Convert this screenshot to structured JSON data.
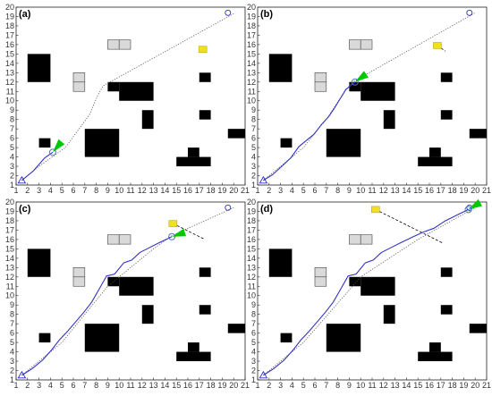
{
  "chart_data": [
    {
      "type": "scatter",
      "panel_label": "(a)",
      "xlim": [
        1,
        21
      ],
      "ylim": [
        1,
        20
      ],
      "x_ticks": [
        1,
        2,
        3,
        4,
        5,
        6,
        7,
        8,
        9,
        10,
        11,
        12,
        13,
        14,
        15,
        16,
        17,
        18,
        19,
        20,
        21
      ],
      "y_ticks": [
        1,
        2,
        3,
        4,
        5,
        6,
        7,
        8,
        9,
        10,
        11,
        12,
        13,
        14,
        15,
        16,
        17,
        18,
        19,
        20
      ],
      "reference_path": [
        [
          1.5,
          1.5
        ],
        [
          3,
          3
        ],
        [
          5.3,
          5
        ],
        [
          7.4,
          8.5
        ],
        [
          8.1,
          10.5
        ],
        [
          8.6,
          11.6
        ],
        [
          20,
          19.3
        ]
      ],
      "executed_path": [
        [
          1.5,
          1.5
        ],
        [
          2.5,
          2.5
        ],
        [
          3.5,
          3.9
        ],
        [
          4.2,
          4.5
        ]
      ],
      "robot": [
        4.2,
        4.5
      ],
      "goal": [
        19.5,
        19.4
      ],
      "dynamic_obstacle": [
        17.3,
        15.5
      ],
      "green_heading_deg": 50
    },
    {
      "type": "scatter",
      "panel_label": "(b)",
      "xlim": [
        1,
        21
      ],
      "ylim": [
        1,
        20
      ],
      "x_ticks": [
        1,
        2,
        3,
        4,
        5,
        6,
        7,
        8,
        9,
        10,
        11,
        12,
        13,
        14,
        15,
        16,
        17,
        18,
        19,
        20,
        21
      ],
      "y_ticks": [
        1,
        2,
        3,
        4,
        5,
        6,
        7,
        8,
        9,
        10,
        11,
        12,
        13,
        14,
        15,
        16,
        17,
        18,
        19,
        20
      ],
      "reference_path": [
        [
          1.5,
          1.5
        ],
        [
          3,
          3
        ],
        [
          5,
          5
        ],
        [
          6.3,
          7
        ],
        [
          7,
          8
        ],
        [
          7.8,
          9.5
        ],
        [
          8.6,
          11
        ],
        [
          9.3,
          12
        ],
        [
          20,
          19.4
        ]
      ],
      "executed_path": [
        [
          1.5,
          1.5
        ],
        [
          2.3,
          2.1
        ],
        [
          3.2,
          3.1
        ],
        [
          3.9,
          3.9
        ],
        [
          4.6,
          5.1
        ],
        [
          5.3,
          5.8
        ],
        [
          5.9,
          6.4
        ],
        [
          6.6,
          7.5
        ],
        [
          7.2,
          8.3
        ],
        [
          7.7,
          9.2
        ],
        [
          8.2,
          10.2
        ],
        [
          8.7,
          11.2
        ],
        [
          9.5,
          12
        ]
      ],
      "robot": [
        9.5,
        12
      ],
      "goal": [
        19.5,
        19.4
      ],
      "dynamic_obstacle": [
        16.7,
        15.9
      ],
      "dynamic_obstacle_track": [
        [
          16.7,
          15.9
        ],
        [
          17.4,
          15.3
        ]
      ],
      "green_heading_deg": 35
    },
    {
      "type": "scatter",
      "panel_label": "(c)",
      "xlim": [
        1,
        21
      ],
      "ylim": [
        1,
        20
      ],
      "x_ticks": [
        1,
        2,
        3,
        4,
        5,
        6,
        7,
        8,
        9,
        10,
        11,
        12,
        13,
        14,
        15,
        16,
        17,
        18,
        19,
        20,
        21
      ],
      "y_ticks": [
        1,
        2,
        3,
        4,
        5,
        6,
        7,
        8,
        9,
        10,
        11,
        12,
        13,
        14,
        15,
        16,
        17,
        18,
        19,
        20
      ],
      "reference_path": [
        [
          1.5,
          1.5
        ],
        [
          5,
          5
        ],
        [
          9,
          11
        ],
        [
          13,
          15
        ],
        [
          14.6,
          16.4
        ],
        [
          20,
          19.4
        ]
      ],
      "executed_path": [
        [
          1.5,
          1.5
        ],
        [
          2.4,
          2.2
        ],
        [
          3.3,
          3.1
        ],
        [
          4.1,
          4.2
        ],
        [
          4.8,
          5.3
        ],
        [
          5.5,
          6.2
        ],
        [
          6.2,
          7.2
        ],
        [
          6.9,
          8.2
        ],
        [
          7.6,
          9.3
        ],
        [
          8.3,
          10.8
        ],
        [
          8.9,
          12.1
        ],
        [
          9.6,
          12.3
        ],
        [
          10.4,
          13.5
        ],
        [
          11.1,
          13.8
        ],
        [
          11.8,
          14.6
        ],
        [
          12.6,
          15.1
        ],
        [
          13.4,
          15.6
        ],
        [
          14.6,
          16.3
        ]
      ],
      "robot": [
        14.6,
        16.3
      ],
      "goal": [
        19.5,
        19.4
      ],
      "dynamic_obstacle": [
        14.7,
        17.7
      ],
      "dynamic_obstacle_track": [
        [
          14.7,
          17.7
        ],
        [
          17.5,
          16
        ]
      ],
      "green_heading_deg": 18
    },
    {
      "type": "scatter",
      "panel_label": "(d)",
      "xlim": [
        1,
        21
      ],
      "ylim": [
        1,
        20
      ],
      "x_ticks": [
        1,
        2,
        3,
        4,
        5,
        6,
        7,
        8,
        9,
        10,
        11,
        12,
        13,
        14,
        15,
        16,
        17,
        18,
        19,
        20,
        21
      ],
      "y_ticks": [
        1,
        2,
        3,
        4,
        5,
        6,
        7,
        8,
        9,
        10,
        11,
        12,
        13,
        14,
        15,
        16,
        17,
        18,
        19,
        20
      ],
      "reference_path": [
        [
          1.5,
          1.5
        ],
        [
          5,
          5
        ],
        [
          10,
          12
        ],
        [
          15,
          16
        ],
        [
          20,
          19.4
        ]
      ],
      "executed_path": [
        [
          1.5,
          1.5
        ],
        [
          2.4,
          2.2
        ],
        [
          3.3,
          3.1
        ],
        [
          4.1,
          4.2
        ],
        [
          4.8,
          5.3
        ],
        [
          5.5,
          6.2
        ],
        [
          6.2,
          7.2
        ],
        [
          6.9,
          8.2
        ],
        [
          7.6,
          9.3
        ],
        [
          8.3,
          10.8
        ],
        [
          8.9,
          12.1
        ],
        [
          9.6,
          12.3
        ],
        [
          10.4,
          13.5
        ],
        [
          11.1,
          13.8
        ],
        [
          11.8,
          14.6
        ],
        [
          12.6,
          15.1
        ],
        [
          13.4,
          15.6
        ],
        [
          14.6,
          16.3
        ],
        [
          15.5,
          16.8
        ],
        [
          16.4,
          17.2
        ],
        [
          17.4,
          18
        ],
        [
          18.4,
          18.6
        ],
        [
          19.4,
          19.2
        ]
      ],
      "robot": [
        19.4,
        19.2
      ],
      "goal": [
        19.5,
        19.4
      ],
      "dynamic_obstacle": [
        11.3,
        19.2
      ],
      "dynamic_obstacle_track": [
        [
          11.3,
          19.2
        ],
        [
          17.2,
          15.6
        ]
      ],
      "green_heading_deg": 30
    }
  ],
  "static_obstacles": [
    [
      2,
      12,
      4,
      15
    ],
    [
      9,
      11,
      10,
      12
    ],
    [
      10,
      10,
      13,
      12
    ],
    [
      12,
      7,
      13,
      9
    ],
    [
      17,
      8,
      18,
      9
    ],
    [
      17,
      12,
      18,
      13
    ],
    [
      3,
      5,
      4,
      6
    ],
    [
      7,
      4,
      10,
      7
    ],
    [
      15,
      3,
      18,
      4
    ],
    [
      16,
      4,
      17,
      5
    ],
    [
      19.5,
      6,
      21,
      7
    ]
  ],
  "gray_blocks": [
    [
      9,
      15.5,
      10,
      16.5
    ],
    [
      10,
      15.5,
      11,
      16.5
    ],
    [
      6,
      12,
      7,
      13
    ],
    [
      6,
      11,
      7,
      12
    ]
  ],
  "colors": {
    "path": "#3232c8",
    "reference": "#555555",
    "robot": "#4f74c8",
    "goal": "#2a2ad0",
    "obstacle": "#000000",
    "block": "#d9d9d9",
    "dynamic": "#f0e020",
    "heading": "#00c800"
  }
}
